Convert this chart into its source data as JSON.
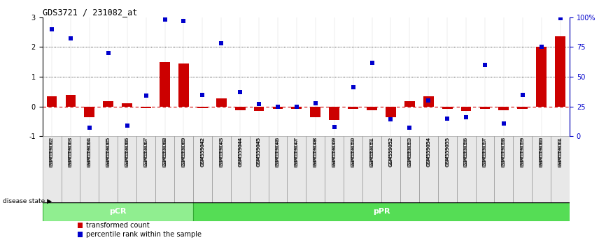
{
  "title": "GDS3721 / 231082_at",
  "samples": [
    "GSM559062",
    "GSM559063",
    "GSM559064",
    "GSM559065",
    "GSM559066",
    "GSM559067",
    "GSM559068",
    "GSM559069",
    "GSM559042",
    "GSM559043",
    "GSM559044",
    "GSM559045",
    "GSM559046",
    "GSM559047",
    "GSM559048",
    "GSM559049",
    "GSM559050",
    "GSM559051",
    "GSM559052",
    "GSM559053",
    "GSM559054",
    "GSM559055",
    "GSM559056",
    "GSM559057",
    "GSM559058",
    "GSM559059",
    "GSM559060",
    "GSM559061"
  ],
  "red_bars": [
    0.35,
    0.38,
    -0.35,
    0.18,
    0.12,
    -0.05,
    1.5,
    1.45,
    -0.05,
    0.28,
    -0.12,
    -0.15,
    -0.08,
    -0.08,
    -0.35,
    -0.45,
    -0.08,
    -0.12,
    -0.35,
    0.18,
    0.35,
    -0.08,
    -0.15,
    -0.08,
    -0.12,
    -0.08,
    2.0,
    2.35
  ],
  "blue_dots_pct": [
    90,
    82,
    7,
    70,
    9,
    34,
    98,
    97,
    35,
    78,
    37,
    27,
    25,
    25,
    28,
    8,
    41,
    62,
    14,
    7,
    30,
    15,
    16,
    60,
    11,
    35,
    75,
    99
  ],
  "pCR_count": 8,
  "ylim_left": [
    -1,
    3
  ],
  "ylim_right": [
    0,
    100
  ],
  "yticks_left": [
    -1,
    0,
    1,
    2,
    3
  ],
  "yticks_right": [
    0,
    25,
    50,
    75,
    100
  ],
  "red_color": "#cc0000",
  "blue_color": "#0000cc",
  "pCR_color": "#90ee90",
  "pPR_color": "#55dd55",
  "bar_width": 0.55,
  "dot_size": 18
}
